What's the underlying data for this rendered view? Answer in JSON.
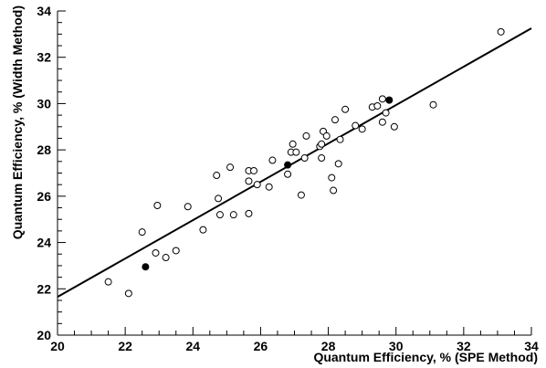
{
  "chart_data": {
    "type": "scatter",
    "title": "",
    "xlabel": "Quantum Efficiency, % (SPE Method)",
    "ylabel": "Quantum Efficiency, % (Width Method)",
    "xlim": [
      20,
      34
    ],
    "ylim": [
      20,
      34
    ],
    "x_ticks": [
      "20",
      "22",
      "24",
      "26",
      "28",
      "30",
      "32",
      "34"
    ],
    "y_ticks": [
      "20",
      "22",
      "24",
      "26",
      "28",
      "30",
      "32",
      "34"
    ],
    "grid": false,
    "legend": false,
    "series": [
      {
        "marker": "open-circle",
        "points": [
          [
            21.5,
            22.3
          ],
          [
            22.1,
            21.8
          ],
          [
            22.5,
            24.45
          ],
          [
            22.95,
            25.6
          ],
          [
            22.9,
            23.55
          ],
          [
            23.2,
            23.35
          ],
          [
            23.5,
            23.65
          ],
          [
            23.85,
            25.55
          ],
          [
            24.3,
            24.55
          ],
          [
            24.7,
            26.9
          ],
          [
            24.75,
            25.9
          ],
          [
            24.8,
            25.2
          ],
          [
            25.1,
            27.25
          ],
          [
            25.2,
            25.2
          ],
          [
            25.65,
            27.1
          ],
          [
            25.65,
            25.25
          ],
          [
            25.65,
            26.65
          ],
          [
            25.8,
            27.1
          ],
          [
            25.9,
            26.5
          ],
          [
            26.25,
            26.4
          ],
          [
            26.35,
            27.55
          ],
          [
            26.8,
            26.95
          ],
          [
            26.9,
            27.9
          ],
          [
            26.95,
            28.25
          ],
          [
            27.05,
            27.9
          ],
          [
            27.2,
            26.05
          ],
          [
            27.3,
            27.65
          ],
          [
            27.35,
            28.6
          ],
          [
            27.75,
            28.15
          ],
          [
            27.8,
            28.25
          ],
          [
            27.8,
            27.65
          ],
          [
            27.85,
            28.8
          ],
          [
            27.95,
            28.6
          ],
          [
            28.1,
            26.8
          ],
          [
            28.15,
            26.25
          ],
          [
            28.2,
            29.3
          ],
          [
            28.3,
            27.4
          ],
          [
            28.35,
            28.45
          ],
          [
            28.5,
            29.75
          ],
          [
            28.8,
            29.05
          ],
          [
            29.0,
            28.9
          ],
          [
            29.3,
            29.85
          ],
          [
            29.45,
            29.9
          ],
          [
            29.6,
            29.2
          ],
          [
            29.6,
            30.2
          ],
          [
            29.7,
            29.6
          ],
          [
            29.95,
            29.0
          ],
          [
            31.1,
            29.95
          ],
          [
            33.1,
            33.1
          ]
        ]
      },
      {
        "marker": "filled-circle",
        "points": [
          [
            22.6,
            22.95
          ],
          [
            26.8,
            27.35
          ],
          [
            29.8,
            30.15
          ]
        ]
      }
    ],
    "fit_line": {
      "x": [
        20,
        34
      ],
      "y": [
        21.65,
        33.25
      ]
    }
  }
}
